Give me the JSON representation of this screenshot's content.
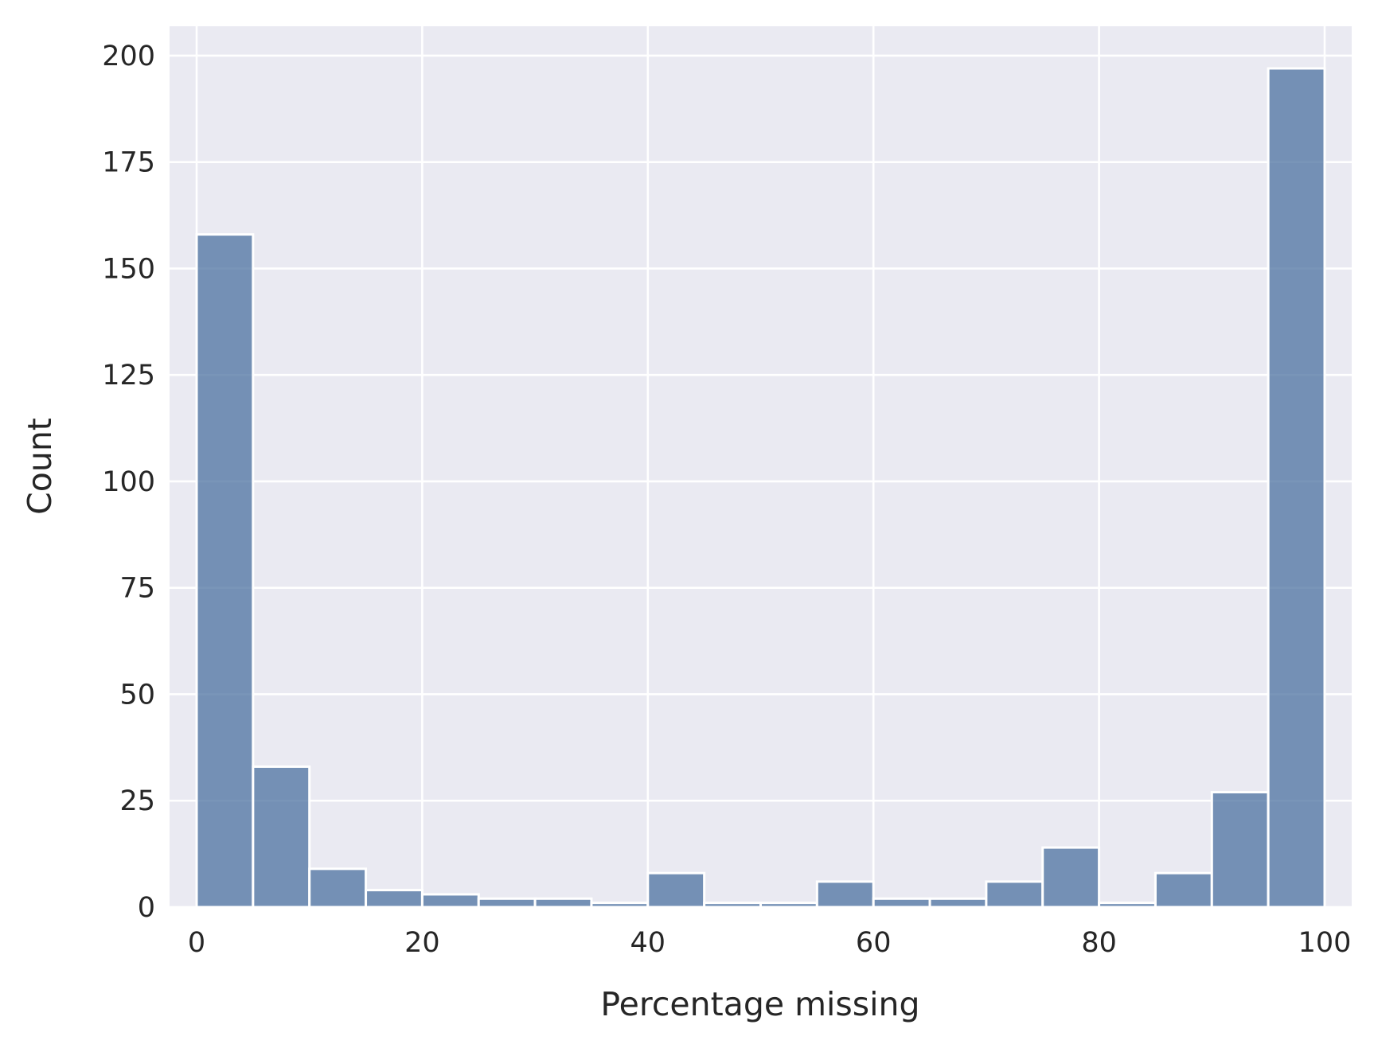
{
  "chart_data": {
    "type": "bar",
    "title": "",
    "xlabel": "Percentage missing",
    "ylabel": "Count",
    "bin_edges": [
      0,
      5,
      10,
      15,
      20,
      25,
      30,
      35,
      40,
      45,
      50,
      55,
      60,
      65,
      70,
      75,
      80,
      85,
      90,
      95,
      100
    ],
    "values": [
      158,
      33,
      9,
      4,
      3,
      2,
      2,
      1,
      8,
      1,
      1,
      6,
      2,
      2,
      6,
      14,
      1,
      8,
      27,
      197
    ],
    "xlim": [
      -2.4,
      102.4
    ],
    "ylim": [
      0,
      206.9
    ],
    "xticks": [
      0,
      20,
      40,
      60,
      80,
      100
    ],
    "yticks": [
      0,
      25,
      50,
      75,
      100,
      125,
      150,
      175,
      200
    ],
    "grid": true,
    "colors": {
      "bar": "#4c72a0",
      "background": "#eaeaf2",
      "grid": "#ffffff",
      "text": "#262626"
    }
  }
}
